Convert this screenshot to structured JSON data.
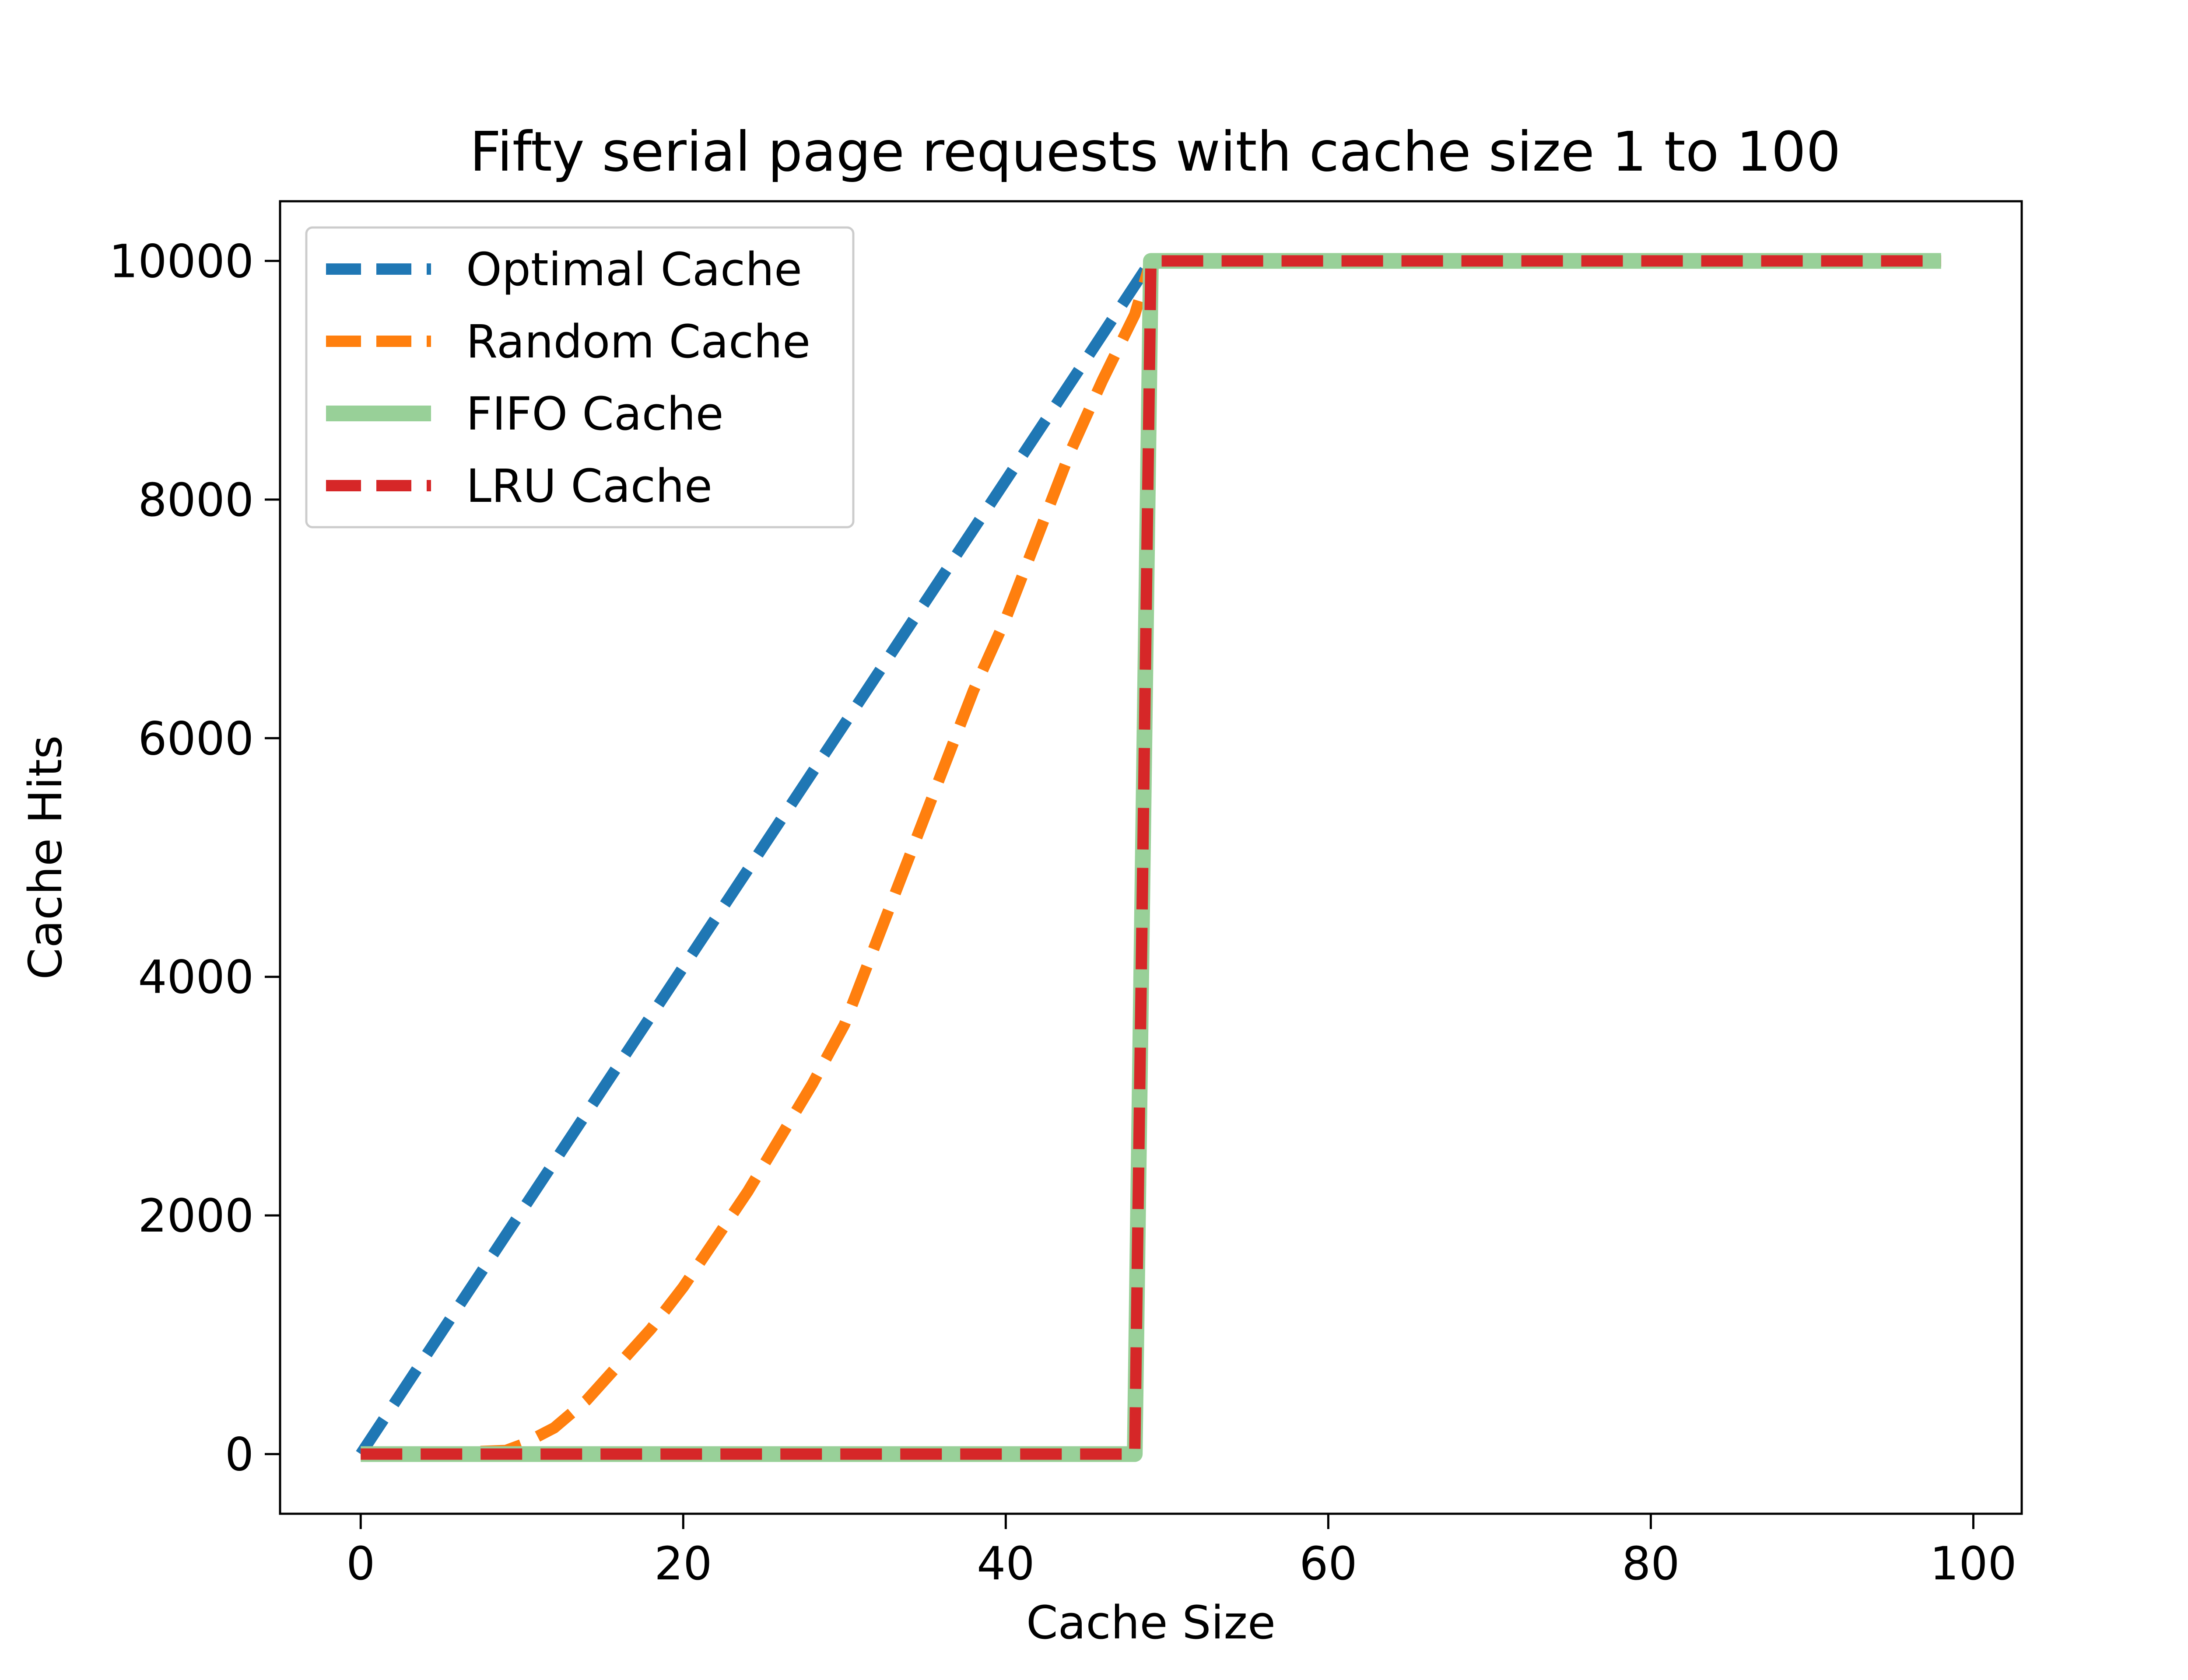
{
  "chart_data": {
    "type": "line",
    "title": "Fifty serial page requests with cache size 1 to 100",
    "xlabel": "Cache Size",
    "ylabel": "Cache Hits",
    "xlim": [
      -5,
      103
    ],
    "ylim": [
      -500,
      10500
    ],
    "xticks": [
      0,
      20,
      40,
      60,
      80,
      100
    ],
    "yticks": [
      0,
      2000,
      4000,
      6000,
      8000,
      10000
    ],
    "grid": false,
    "legend_position": "top-left",
    "series": [
      {
        "name": "Optimal Cache",
        "color": "#1f77b4",
        "style": "dashed",
        "x": [
          0,
          5,
          10,
          15,
          20,
          25,
          30,
          35,
          40,
          45,
          49,
          50,
          60,
          70,
          80,
          90,
          98
        ],
        "y": [
          0,
          1020,
          2040,
          3060,
          4080,
          5100,
          6120,
          7140,
          8160,
          9180,
          10000,
          10000,
          10000,
          10000,
          10000,
          10000,
          10000
        ]
      },
      {
        "name": "Random Cache",
        "color": "#ff7f0e",
        "style": "dashed",
        "x": [
          0,
          5,
          9,
          10,
          12,
          14,
          16,
          18,
          20,
          22,
          24,
          26,
          28,
          30,
          32,
          34,
          36,
          38,
          40,
          42,
          44,
          46,
          48,
          49,
          50,
          60,
          70,
          80,
          90,
          98
        ],
        "y": [
          0,
          10,
          30,
          80,
          220,
          450,
          750,
          1050,
          1400,
          1800,
          2200,
          2650,
          3100,
          3600,
          4300,
          5000,
          5700,
          6400,
          7000,
          7700,
          8400,
          9000,
          9550,
          10000,
          10000,
          10000,
          10000,
          10000,
          10000,
          10000
        ]
      },
      {
        "name": "FIFO Cache",
        "color": "#98d098",
        "style": "solid",
        "x": [
          0,
          10,
          20,
          30,
          40,
          47,
          48,
          49,
          50,
          60,
          70,
          80,
          90,
          98
        ],
        "y": [
          0,
          0,
          0,
          0,
          0,
          0,
          0,
          10000,
          10000,
          10000,
          10000,
          10000,
          10000,
          10000
        ]
      },
      {
        "name": "LRU Cache",
        "color": "#d62728",
        "style": "dashed",
        "x": [
          0,
          10,
          20,
          30,
          40,
          47,
          48,
          49,
          50,
          60,
          70,
          80,
          90,
          98
        ],
        "y": [
          0,
          0,
          0,
          0,
          0,
          0,
          0,
          10000,
          10000,
          10000,
          10000,
          10000,
          10000,
          10000
        ]
      }
    ]
  }
}
